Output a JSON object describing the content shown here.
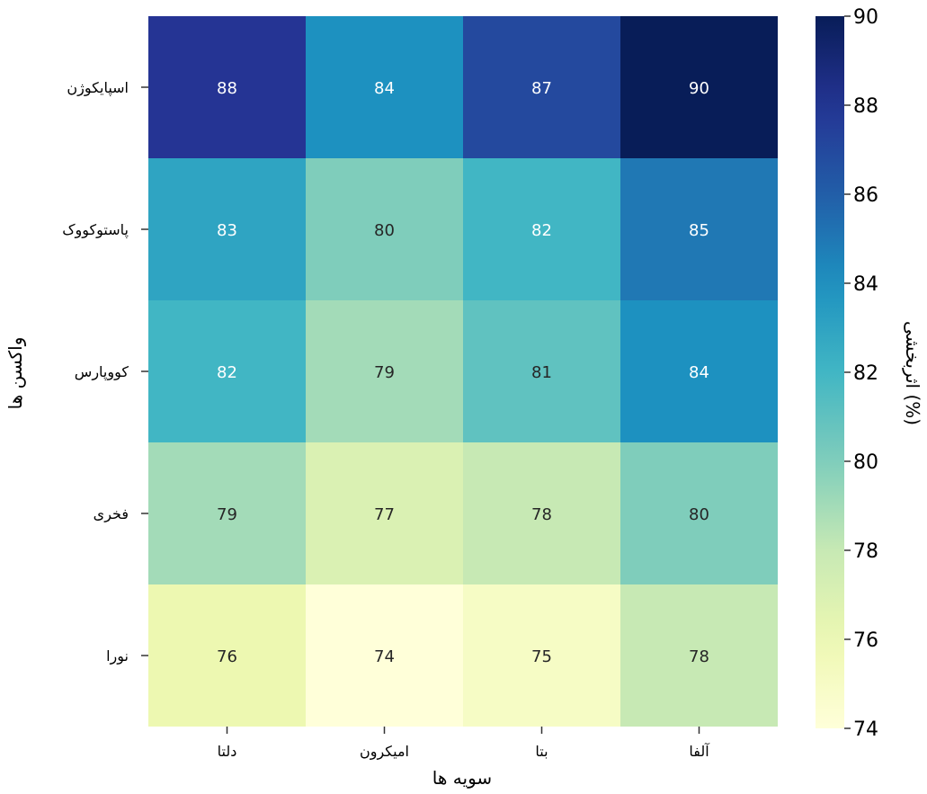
{
  "chart_data": {
    "type": "heatmap",
    "x_categories": [
      "دلتا",
      "امیکرون",
      "بتا",
      "آلفا"
    ],
    "y_categories": [
      "اسپایکوژن",
      "پاستوکووک",
      "کووپارس",
      "فخری",
      "نورا"
    ],
    "values": [
      [
        88,
        84,
        87,
        90
      ],
      [
        83,
        80,
        82,
        85
      ],
      [
        82,
        79,
        81,
        84
      ],
      [
        79,
        77,
        78,
        80
      ],
      [
        76,
        74,
        75,
        78
      ]
    ],
    "xlabel": "سویه ها",
    "ylabel": "واکسن ها",
    "colorbar_label": "اثربخشی (%)",
    "colorbar_ticks": [
      74,
      76,
      78,
      80,
      82,
      84,
      86,
      88,
      90
    ],
    "vmin": 74,
    "vmax": 90,
    "colormap": "YlGnBu",
    "grid": false
  }
}
